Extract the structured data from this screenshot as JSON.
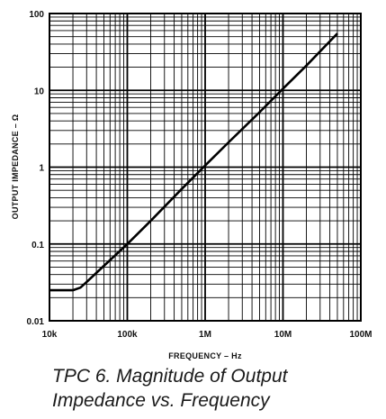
{
  "caption": {
    "line1": "TPC 6.  Magnitude of Output",
    "line2": "Impedance vs. Frequency"
  },
  "chart_data": {
    "type": "line",
    "title": "",
    "xlabel": "FREQUENCY – Hz",
    "ylabel": "OUTPUT IMPEDANCE – Ω",
    "x_scale": "log",
    "y_scale": "log",
    "xlim": [
      10000,
      100000000
    ],
    "ylim": [
      0.01,
      100
    ],
    "x_ticks": [
      10000,
      100000,
      1000000,
      10000000,
      100000000
    ],
    "x_tick_labels": [
      "10k",
      "100k",
      "1M",
      "10M",
      "100M"
    ],
    "y_ticks": [
      0.01,
      0.1,
      1,
      10,
      100
    ],
    "y_tick_labels": [
      "0.01",
      "0.1",
      "1",
      "10",
      "100"
    ],
    "grid": true,
    "series": [
      {
        "x": [
          10000,
          15000,
          20000,
          25000,
          30000,
          50000,
          100000,
          200000,
          500000,
          1000000,
          2000000,
          5000000,
          10000000,
          20000000,
          50000000
        ],
        "y": [
          0.025,
          0.025,
          0.025,
          0.027,
          0.032,
          0.052,
          0.1,
          0.2,
          0.52,
          1.05,
          2.1,
          5.2,
          10.5,
          21,
          55
        ]
      }
    ]
  }
}
